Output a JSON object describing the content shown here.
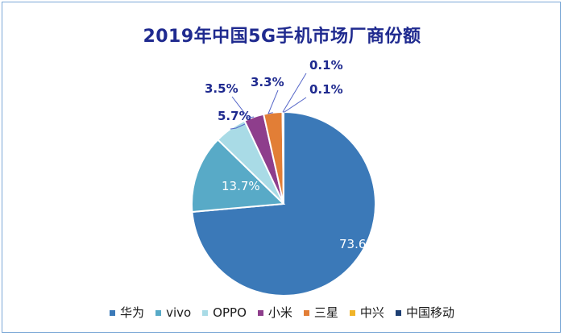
{
  "chart_data": {
    "type": "pie",
    "title": "2019年中国5G手机市场厂商份额",
    "legend_position": "bottom",
    "slices": [
      {
        "name": "华为",
        "value": 73.6,
        "label": "73.6%",
        "color": "#3b79b8"
      },
      {
        "name": "vivo",
        "value": 13.7,
        "label": "13.7%",
        "color": "#58aac7"
      },
      {
        "name": "OPPO",
        "value": 5.7,
        "label": "5.7%",
        "color": "#a9dbe6"
      },
      {
        "name": "小米",
        "value": 3.5,
        "label": "3.5%",
        "color": "#8e3e8c"
      },
      {
        "name": "三星",
        "value": 3.3,
        "label": "3.3%",
        "color": "#e27e36"
      },
      {
        "name": "中兴",
        "value": 0.1,
        "label": "0.1%",
        "color": "#f0b429"
      },
      {
        "name": "中国移动",
        "value": 0.1,
        "label": "0.1%",
        "color": "#1d3e72"
      }
    ]
  }
}
